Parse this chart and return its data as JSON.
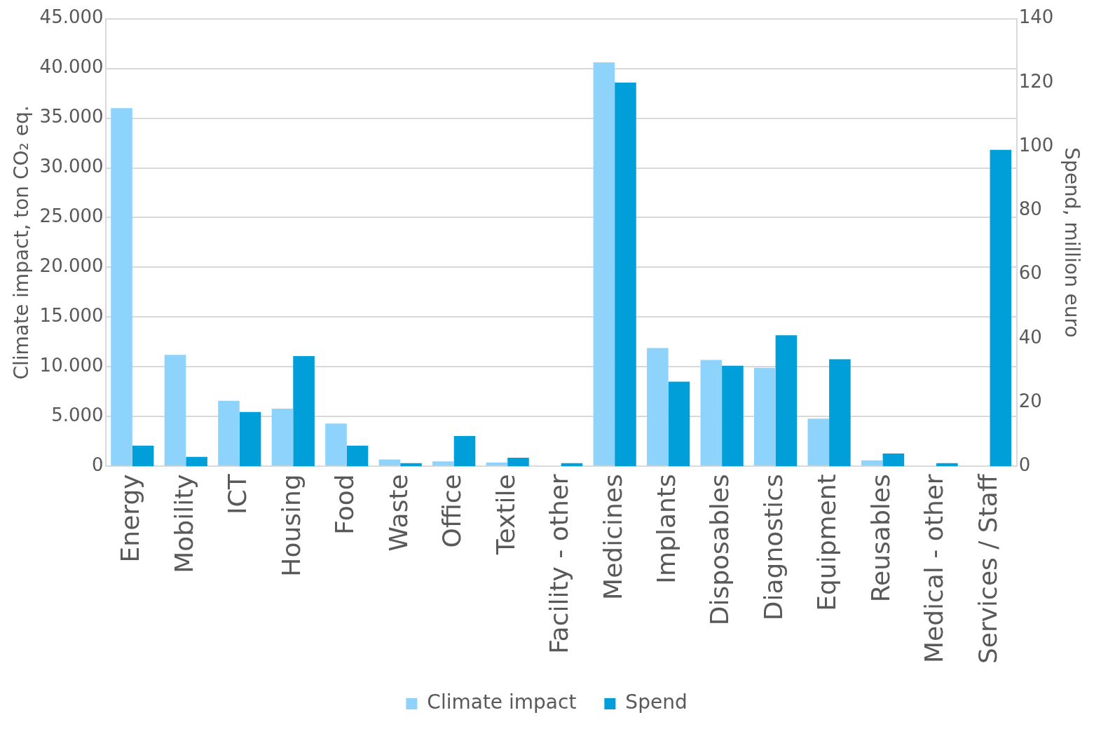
{
  "chart_data": {
    "type": "bar",
    "ylabel": "Climate impact, ton CO₂ eq.",
    "y2label": "Spend, million euro",
    "categories": [
      "Energy",
      "Mobility",
      "ICT",
      "Housing",
      "Food",
      "Waste",
      "Office",
      "Textile",
      "Facility - other",
      "Medicines",
      "Implants",
      "Disposables",
      "Diagnostics",
      "Equipment",
      "Reusables",
      "Medical - other",
      "Services / Staff"
    ],
    "series": [
      {
        "name": "Climate impact",
        "color": "#8dd3fc",
        "values": [
          36000,
          11200,
          6600,
          5800,
          4300,
          700,
          500,
          400,
          null,
          40600,
          11900,
          10700,
          9900,
          4800,
          600,
          null,
          null
        ]
      },
      {
        "name": "Spend",
        "color": "#009fd9",
        "axis": "y2",
        "values": [
          6.5,
          3,
          17,
          34.5,
          6.5,
          1,
          9.5,
          2.7,
          1,
          120,
          26.5,
          31.5,
          41,
          33.5,
          4,
          1,
          99
        ]
      }
    ],
    "ylim": [
      0,
      45000
    ],
    "yticks": [
      {
        "value": 0,
        "label": "0"
      },
      {
        "value": 5000,
        "label": "5.000"
      },
      {
        "value": 10000,
        "label": "10.000"
      },
      {
        "value": 15000,
        "label": "15.000"
      },
      {
        "value": 20000,
        "label": "20.000"
      },
      {
        "value": 25000,
        "label": "25.000"
      },
      {
        "value": 30000,
        "label": "30.000"
      },
      {
        "value": 35000,
        "label": "35.000"
      },
      {
        "value": 40000,
        "label": "40.000"
      },
      {
        "value": 45000,
        "label": "45.000"
      }
    ],
    "y2lim": [
      0,
      140
    ],
    "y2ticks": [
      0,
      20,
      40,
      60,
      80,
      100,
      120,
      140
    ],
    "grid": "y",
    "legend": "bottom"
  }
}
